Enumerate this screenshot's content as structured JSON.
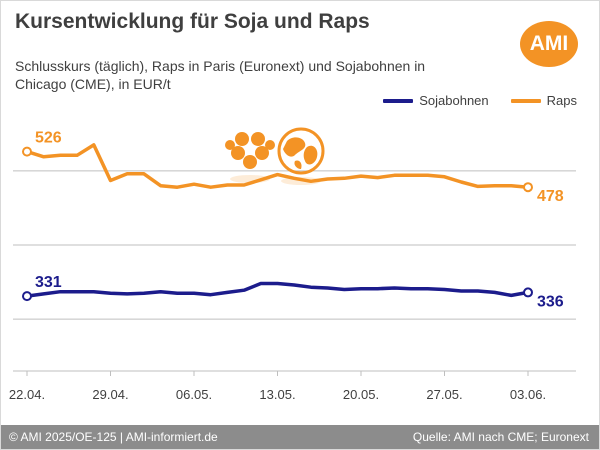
{
  "header": {
    "title": "Kursentwicklung für Soja und Raps",
    "subtitle": "Schlusskurs (täglich), Raps in Paris (Euronext) und Sojabohnen in Chicago (CME), in EUR/t",
    "logo_text": "AMI"
  },
  "footer": {
    "left": "© AMI 2025/OE-125 | AMI-informiert.de",
    "right": "Quelle: AMI nach CME; Euronext"
  },
  "colors": {
    "raps": "#f39325",
    "sojabohnen": "#1c1c8c",
    "grid": "#bfbfbf",
    "footer": "#8c8c8c",
    "logo": "#f39325"
  },
  "icons": [
    "rapeseed-flower-icon",
    "globe-icon"
  ],
  "chart_data": {
    "type": "line",
    "title": "Kursentwicklung für Soja und Raps",
    "subtitle": "Schlusskurs (täglich), Raps in Paris (Euronext) und Sojabohnen in Chicago (CME), in EUR/t",
    "x": [
      "22.04.",
      "23.04.",
      "24.04.",
      "25.04.",
      "28.04.",
      "29.04.",
      "30.04.",
      "01.05.",
      "02.05.",
      "05.05.",
      "06.05.",
      "07.05.",
      "08.05.",
      "09.05.",
      "12.05.",
      "13.05.",
      "14.05.",
      "15.05.",
      "16.05.",
      "19.05.",
      "20.05.",
      "21.05.",
      "22.05.",
      "23.05.",
      "26.05.",
      "27.05.",
      "28.05.",
      "29.05.",
      "30.05.",
      "02.06.",
      "03.06."
    ],
    "x_ticks": [
      "22.04.",
      "29.04.",
      "06.05.",
      "13.05.",
      "20.05.",
      "27.05.",
      "03.06."
    ],
    "series": [
      {
        "name": "Sojabohnen",
        "color": "#1c1c8c",
        "values": [
          331,
          334,
          337,
          337,
          337,
          335,
          334,
          335,
          337,
          335,
          335,
          333,
          336,
          339,
          348,
          348,
          346,
          343,
          342,
          340,
          341,
          341,
          342,
          341,
          341,
          340,
          338,
          338,
          336,
          332,
          336
        ],
        "start_label": "331",
        "end_label": "336"
      },
      {
        "name": "Raps",
        "color": "#f39325",
        "values": [
          526,
          519,
          521,
          521,
          535,
          487,
          496,
          496,
          480,
          478,
          482,
          478,
          481,
          481,
          488,
          495,
          490,
          486,
          489,
          490,
          493,
          491,
          494,
          494,
          494,
          492,
          485,
          479,
          480,
          480,
          478
        ],
        "start_label": "526",
        "end_label": "478"
      }
    ],
    "ylim": [
      230,
      570
    ],
    "gridlines": [
      300,
      400,
      500
    ],
    "grid": "horizontal",
    "legend_position": "top-right",
    "xlabel": "",
    "ylabel": ""
  }
}
